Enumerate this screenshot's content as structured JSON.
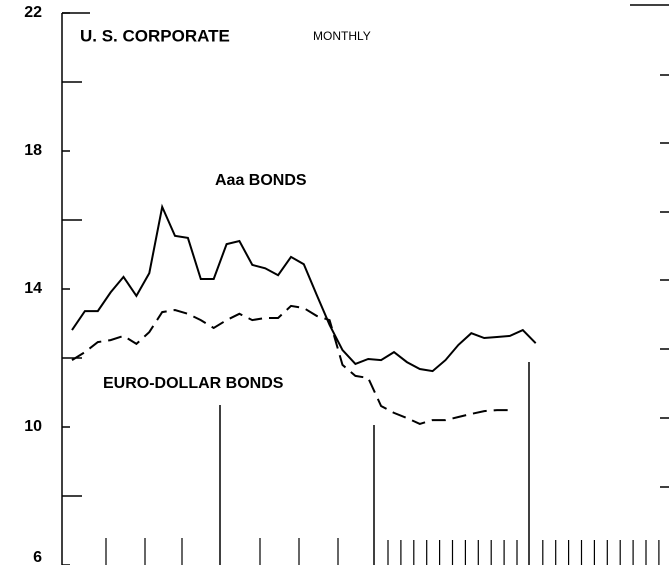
{
  "chart_data": {
    "type": "line",
    "title": "U. S. CORPORATE",
    "subtitle": "MONTHLY",
    "annotations": [
      "Aaa BONDS",
      "EURO-DOLLAR BONDS"
    ],
    "categories": [
      null,
      null,
      null,
      null,
      null,
      null,
      null,
      null,
      null,
      null,
      null,
      null,
      null,
      null,
      null,
      null,
      null,
      null,
      null,
      null,
      null,
      null,
      null,
      null,
      null,
      null,
      null,
      null,
      null,
      null,
      null,
      null,
      null,
      null,
      null,
      null,
      null
    ],
    "series": [
      {
        "name": "Aaa BONDS",
        "color": "#000000",
        "dash": false,
        "values": [
          12.81,
          13.36,
          13.36,
          13.9,
          14.35,
          13.8,
          14.46,
          16.38,
          15.54,
          15.48,
          14.29,
          14.29,
          15.3,
          15.39,
          14.7,
          14.6,
          14.4,
          14.93,
          14.72,
          13.83,
          12.96,
          12.23,
          11.83,
          11.97,
          11.94,
          12.17,
          11.88,
          11.68,
          11.62,
          11.94,
          12.38,
          12.72,
          12.58,
          12.61,
          12.64,
          12.81,
          12.43
        ]
      },
      {
        "name": "EURO-DOLLAR BONDS",
        "color": "#000000",
        "dash": true,
        "values": [
          11.94,
          12.17,
          12.46,
          12.52,
          12.64,
          12.41,
          12.75,
          13.33,
          13.39,
          13.28,
          13.1,
          12.87,
          13.1,
          13.28,
          13.1,
          13.16,
          13.16,
          13.51,
          13.45,
          13.22,
          13.1,
          11.8,
          11.48,
          11.42,
          10.61,
          10.41,
          10.26,
          10.09,
          10.2,
          10.2,
          10.29,
          10.38,
          10.46,
          10.49,
          10.49,
          null,
          null
        ]
      }
    ],
    "ylim": [
      6,
      22
    ],
    "yticks": [
      6,
      10,
      14,
      18,
      22
    ],
    "yticks_minor": [
      8,
      12,
      16,
      20
    ],
    "grid": false
  }
}
